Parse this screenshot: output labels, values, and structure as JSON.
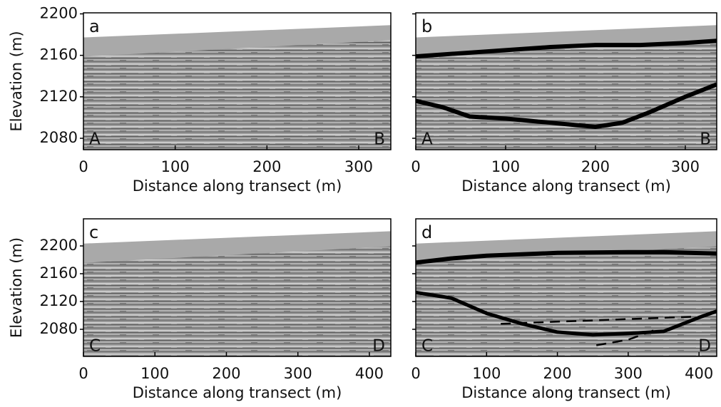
{
  "chart_data": [
    {
      "type": "image",
      "panel_label": "a",
      "left_label": "A",
      "right_label": "B",
      "xlabel": "Distance along transect (m)",
      "ylabel": "Elevation (m)",
      "xlim": [
        0,
        335
      ],
      "ylim": [
        2069,
        2201
      ],
      "xticks": [
        0,
        100,
        200,
        300
      ],
      "yticks": [
        2080,
        2120,
        2160,
        2200
      ]
    },
    {
      "type": "line",
      "panel_label": "b",
      "left_label": "A",
      "right_label": "B",
      "xlabel": "Distance along transect (m)",
      "xlim": [
        0,
        335
      ],
      "ylim": [
        2069,
        2201
      ],
      "xticks": [
        0,
        100,
        200,
        300
      ],
      "yticks": [
        2080,
        2120,
        2160,
        2200
      ],
      "series": [
        {
          "color": "#000000",
          "line_width": 6,
          "dash": false,
          "x": [
            0,
            50,
            100,
            150,
            200,
            250,
            300,
            335
          ],
          "values": [
            2159,
            2162,
            2165,
            2168,
            2170,
            2170,
            2172,
            2174
          ]
        },
        {
          "color": "#000000",
          "line_width": 6,
          "dash": false,
          "x": [
            0,
            30,
            60,
            100,
            150,
            200,
            230,
            260,
            300,
            335
          ],
          "values": [
            2116,
            2110,
            2101,
            2099,
            2095,
            2091,
            2095,
            2105,
            2120,
            2132
          ]
        }
      ]
    },
    {
      "type": "image",
      "panel_label": "c",
      "left_label": "C",
      "right_label": "D",
      "xlabel": "Distance along transect (m)",
      "ylabel": "Elevation (m)",
      "xlim": [
        0,
        430
      ],
      "ylim": [
        2041,
        2239
      ],
      "xticks": [
        0,
        100,
        200,
        300,
        400
      ],
      "yticks": [
        2080,
        2120,
        2160,
        2200
      ]
    },
    {
      "type": "line",
      "panel_label": "d",
      "left_label": "C",
      "right_label": "D",
      "xlabel": "Distance along transect (m)",
      "xlim": [
        0,
        425
      ],
      "ylim": [
        2041,
        2239
      ],
      "xticks": [
        0,
        100,
        200,
        300,
        400
      ],
      "yticks": [
        2080,
        2120,
        2160,
        2200
      ],
      "series": [
        {
          "color": "#000000",
          "line_width": 6,
          "dash": false,
          "x": [
            0,
            50,
            100,
            200,
            300,
            350,
            425
          ],
          "values": [
            2176,
            2182,
            2186,
            2190,
            2191,
            2191,
            2189
          ]
        },
        {
          "color": "#000000",
          "line_width": 5,
          "dash": false,
          "x": [
            0,
            50,
            100,
            150,
            200,
            250,
            300,
            350,
            400,
            425
          ],
          "values": [
            2133,
            2125,
            2103,
            2088,
            2076,
            2072,
            2074,
            2077,
            2097,
            2106
          ]
        },
        {
          "color": "#000000",
          "line_width": 2.5,
          "dash": true,
          "x": [
            120,
            390
          ],
          "values": [
            2088,
            2098
          ]
        },
        {
          "color": "#000000",
          "line_width": 2.5,
          "dash": true,
          "x": [
            255,
            300,
            340
          ],
          "values": [
            2057,
            2065,
            2080
          ]
        }
      ]
    }
  ]
}
